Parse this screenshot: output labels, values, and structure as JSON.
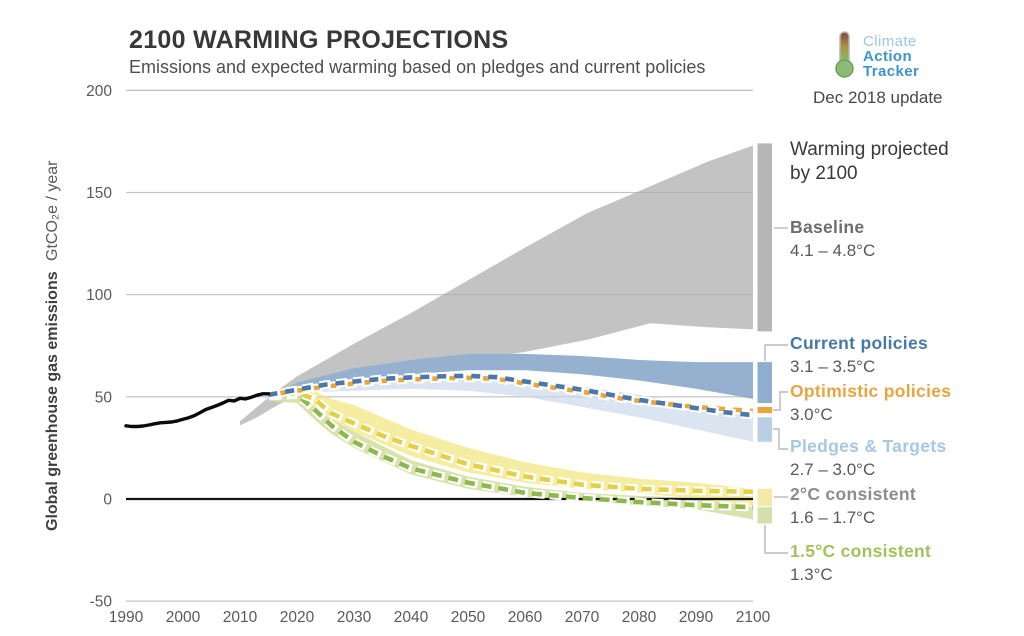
{
  "header": {
    "title": "2100 WARMING PROJECTIONS",
    "subtitle": "Emissions and expected warming based on pledges and current policies",
    "update_note": "Dec 2018 update",
    "logo": {
      "line1": "Climate",
      "line2": "Action",
      "line3": "Tracker",
      "icon": "thermometer-icon",
      "color_light_blue": "#9cc7e5",
      "color_bold_blue": "#3e94cd"
    }
  },
  "right_panel": {
    "heading_line1": "Warming projected",
    "heading_line2": "by 2100",
    "entries": [
      {
        "id": "baseline",
        "label": "Baseline",
        "range": "4.1 – 4.8°C",
        "label_color": "#6e6e6e"
      },
      {
        "id": "current",
        "label": "Current policies",
        "range": "3.1 – 3.5°C",
        "label_color": "#4679a8"
      },
      {
        "id": "optimistic",
        "label": "Optimistic policies",
        "range": "3.0°C",
        "label_color": "#e9a440"
      },
      {
        "id": "pledges",
        "label": "Pledges & Targets",
        "range": "2.7 – 3.0°C",
        "label_color": "#a6c7e6"
      },
      {
        "id": "two_deg",
        "label": "2°C consistent",
        "range": "1.6 – 1.7°C",
        "label_color": "#8c8c8c"
      },
      {
        "id": "one_five",
        "label": "1.5°C consistent",
        "range": "1.3°C",
        "label_color": "#a3c15c"
      }
    ]
  },
  "chart_data": {
    "type": "area",
    "title": "2100 WARMING PROJECTIONS",
    "ylabel_bold": "Global greenhouse gas emissions",
    "ylabel_unit": "GtCO₂e / year",
    "xlim": [
      1990,
      2100
    ],
    "ylim": [
      -50,
      200
    ],
    "x_ticks": [
      1990,
      2000,
      2010,
      2020,
      2030,
      2040,
      2050,
      2060,
      2070,
      2080,
      2090,
      2100
    ],
    "y_ticks": [
      200,
      150,
      100,
      50,
      0,
      -50
    ],
    "grid_color": "#d8d8d8",
    "zero_line_color": "#141414",
    "historical": {
      "name": "Historical emissions",
      "color": "#0b0b0b",
      "x": [
        1990,
        1991,
        1992,
        1993,
        1994,
        1995,
        1996,
        1997,
        1998,
        1999,
        2000,
        2001,
        2002,
        2003,
        2004,
        2005,
        2006,
        2007,
        2008,
        2009,
        2010,
        2011,
        2012,
        2013,
        2014,
        2015
      ],
      "y": [
        35.8,
        35.5,
        35.5,
        35.7,
        36.2,
        36.8,
        37.3,
        37.5,
        37.7,
        38.2,
        39.0,
        39.8,
        40.8,
        42.3,
        43.8,
        44.8,
        45.8,
        47.0,
        48.3,
        48.0,
        49.3,
        49.0,
        49.8,
        50.8,
        51.5,
        51.5
      ]
    },
    "bands": [
      {
        "id": "baseline",
        "name": "Baseline",
        "color": "#c3c3c3",
        "years": [
          2010,
          2013,
          2016,
          2020,
          2030,
          2040,
          2050,
          2060,
          2071,
          2082,
          2092,
          2100
        ],
        "low": [
          36,
          40,
          45,
          51,
          57,
          63,
          68,
          72,
          78,
          86,
          84,
          83
        ],
        "high": [
          38,
          45,
          52,
          60,
          76,
          91,
          107,
          123,
          140,
          153,
          165,
          173
        ]
      },
      {
        "id": "current",
        "name": "Current policies",
        "color": "#95b1cf",
        "years": [
          2018,
          2020,
          2030,
          2040,
          2050,
          2060,
          2070,
          2080,
          2090,
          2100
        ],
        "low": [
          52,
          53,
          57,
          61,
          63,
          63,
          61,
          58,
          54,
          49
        ],
        "high": [
          54,
          57,
          64,
          68,
          71,
          71,
          70,
          68,
          67,
          67
        ]
      },
      {
        "id": "pledges",
        "name": "Pledges & Targets",
        "color": "#dbe4f1",
        "years": [
          2018,
          2020,
          2030,
          2040,
          2050,
          2060,
          2070,
          2080,
          2090,
          2100
        ],
        "low": [
          51,
          52,
          53,
          54,
          53,
          50,
          45,
          40,
          34,
          28
        ],
        "high": [
          53,
          55,
          59,
          61,
          61,
          58,
          55,
          51,
          46,
          40
        ]
      },
      {
        "id": "two_deg",
        "name": "2°C consistent",
        "color": "#f5eda2",
        "years": [
          2015,
          2020,
          2023,
          2026,
          2030,
          2040,
          2050,
          2060,
          2070,
          2080,
          2090,
          2100
        ],
        "low": [
          48,
          48,
          43,
          38,
          33,
          21,
          13,
          8,
          5,
          3,
          0,
          -3.5
        ],
        "high": [
          52,
          55,
          53,
          49,
          46,
          34,
          25,
          18,
          13,
          10,
          8,
          5
        ]
      },
      {
        "id": "one_five",
        "name": "1.5°C consistent",
        "color": "#d8e2ab",
        "years": [
          2015,
          2020,
          2023,
          2026,
          2030,
          2040,
          2050,
          2060,
          2070,
          2080,
          2090,
          2100
        ],
        "low": [
          48,
          47,
          39,
          32,
          25,
          12,
          5,
          1,
          -1,
          -3,
          -5,
          -10
        ],
        "high": [
          51,
          52,
          45,
          39,
          33,
          19,
          11,
          6,
          3,
          1.5,
          0.5,
          -4
        ]
      }
    ],
    "lines": [
      {
        "id": "one_five",
        "name": "1.5°C consistent pathway",
        "color": "#8cb84e",
        "dash": "10 7",
        "casing": "12 5",
        "offset": 0,
        "years": [
          2015,
          2020,
          2023,
          2026,
          2030,
          2035,
          2040,
          2050,
          2060,
          2070,
          2080,
          2090,
          2100
        ],
        "values": [
          50.5,
          51,
          44,
          36,
          28,
          21,
          15,
          8,
          3,
          0.5,
          -1.5,
          -3,
          -4
        ]
      },
      {
        "id": "two_deg",
        "name": "2°C consistent pathway",
        "color": "#e2cf4a",
        "dash": "10 7",
        "casing": "12 5",
        "offset": 0,
        "years": [
          2015,
          2020,
          2023,
          2026,
          2030,
          2035,
          2040,
          2050,
          2060,
          2070,
          2080,
          2090,
          2100
        ],
        "values": [
          50.5,
          52,
          49,
          42,
          37,
          31,
          26,
          17,
          11,
          7,
          5,
          4,
          3.5
        ]
      },
      {
        "id": "optimistic",
        "name": "Optimistic policies pathway",
        "color": "#e9a63d",
        "dash": "9 8",
        "casing": "11 6",
        "offset": 8.5,
        "years": [
          2015,
          2020,
          2025,
          2030,
          2035,
          2040,
          2045,
          2050,
          2055,
          2060,
          2065,
          2070,
          2075,
          2080,
          2085,
          2090,
          2095,
          2100
        ],
        "values": [
          51,
          53,
          55,
          56.5,
          57.8,
          58.5,
          59,
          59.3,
          58.8,
          56.5,
          54.5,
          52.5,
          50,
          48,
          46.5,
          45,
          44,
          43
        ]
      },
      {
        "id": "current",
        "name": "Current policies pathway",
        "color": "#4a78ab",
        "dash": "9 8",
        "casing": "11 6",
        "offset": 0,
        "years": [
          2015,
          2020,
          2025,
          2030,
          2035,
          2040,
          2045,
          2050,
          2055,
          2060,
          2065,
          2070,
          2075,
          2080,
          2085,
          2090,
          2095,
          2100
        ],
        "values": [
          51,
          53.5,
          56,
          57.5,
          58.8,
          59.5,
          60,
          60.3,
          59.6,
          57.5,
          55.5,
          53.5,
          51,
          48.5,
          46.5,
          44.5,
          42.5,
          41
        ]
      }
    ],
    "bars_2100": [
      {
        "id": "baseline",
        "color": "#b6b6b6",
        "range": [
          82,
          174
        ]
      },
      {
        "id": "current",
        "color": "#8fadce",
        "range": [
          47,
          67
        ]
      },
      {
        "id": "optimistic",
        "color": "#e9a63d",
        "range": [
          42,
          45
        ]
      },
      {
        "id": "pledges",
        "color": "#b9cfe7",
        "range": [
          28,
          40
        ]
      },
      {
        "id": "two_deg",
        "color": "#f3eaa9",
        "range": [
          -3.5,
          5
        ]
      },
      {
        "id": "one_five",
        "color": "#d5e0a8",
        "range": [
          -12,
          -4
        ]
      }
    ]
  }
}
